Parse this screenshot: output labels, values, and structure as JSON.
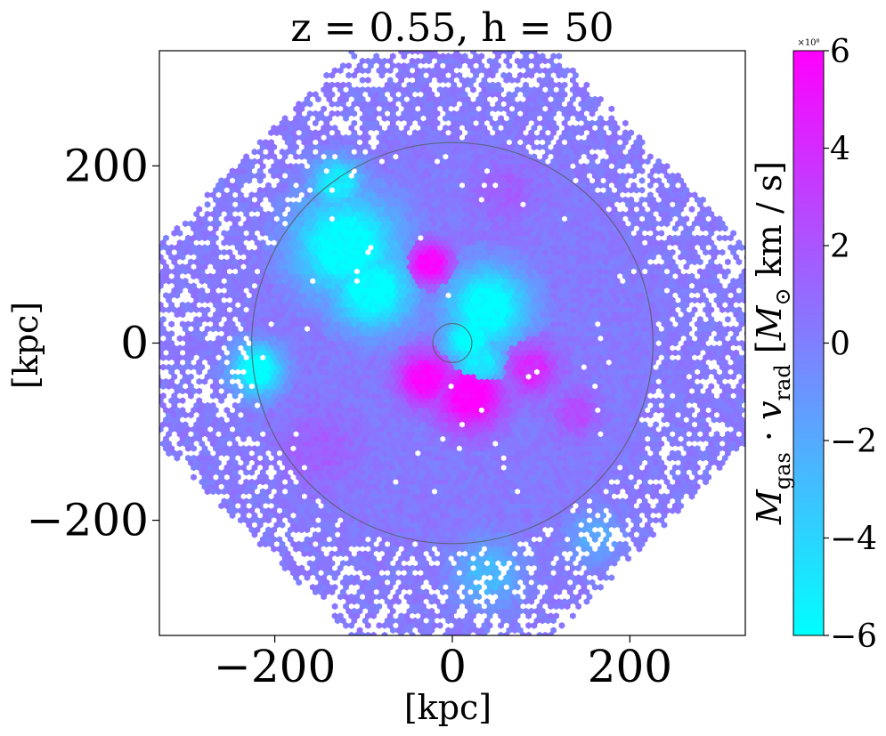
{
  "chart_data": {
    "type": "heatmap",
    "subtype": "hexbin",
    "title": "z = 0.55, h = 50",
    "xlabel": "[kpc]",
    "ylabel": "[kpc]",
    "xlim": [
      -330,
      330
    ],
    "ylim": [
      -330,
      330
    ],
    "x_ticks": [
      -200,
      0,
      200
    ],
    "y_ticks": [
      -200,
      0,
      200
    ],
    "x_tick_labels": [
      "−200",
      "0",
      "200"
    ],
    "y_tick_labels": [
      "−200",
      "0",
      "200"
    ],
    "colorbar": {
      "label": "M_gas · v_rad [M_⊙ km / s]",
      "label_text": "Mgas · vrad [M⊙ km / s]",
      "multiplier": "×10⁸",
      "range": [
        -6,
        6
      ],
      "ticks": [
        -6,
        -4,
        -2,
        0,
        2,
        4,
        6
      ],
      "tick_labels": [
        "−6",
        "−4",
        "−2",
        "0",
        "2",
        "4",
        "6"
      ],
      "colormap": "cool",
      "color_low": "#00ffff",
      "color_high": "#ff00ff"
    },
    "circles": [
      {
        "center": [
          0,
          0
        ],
        "radius": 226,
        "meaning": "outer virial radius"
      },
      {
        "center": [
          0,
          0
        ],
        "radius": 22,
        "meaning": "inner galaxy radius"
      }
    ],
    "background_level": 0.3,
    "regions": [
      {
        "x": -120,
        "y": 110,
        "r": 70,
        "value": -6.0
      },
      {
        "x": -90,
        "y": 60,
        "r": 55,
        "value": -6.0
      },
      {
        "x": -130,
        "y": 180,
        "r": 35,
        "value": -5.0
      },
      {
        "x": 40,
        "y": 40,
        "r": 55,
        "value": -6.0
      },
      {
        "x": 20,
        "y": 5,
        "r": 35,
        "value": -6.0
      },
      {
        "x": -220,
        "y": -30,
        "r": 35,
        "value": -6.0
      },
      {
        "x": 30,
        "y": -20,
        "r": 35,
        "value": -5.0
      },
      {
        "x": -25,
        "y": 90,
        "r": 28,
        "value": 6.0
      },
      {
        "x": -30,
        "y": -40,
        "r": 35,
        "value": 6.0
      },
      {
        "x": 20,
        "y": -60,
        "r": 45,
        "value": 6.0
      },
      {
        "x": 90,
        "y": -30,
        "r": 35,
        "value": 4.0
      },
      {
        "x": 140,
        "y": -80,
        "r": 30,
        "value": 2.5
      },
      {
        "x": -150,
        "y": -120,
        "r": 50,
        "value": 1.5
      },
      {
        "x": 60,
        "y": 170,
        "r": 40,
        "value": 1.5
      },
      {
        "x": 40,
        "y": -260,
        "r": 45,
        "value": -2.5
      },
      {
        "x": 160,
        "y": -220,
        "r": 35,
        "value": -2.0
      }
    ]
  }
}
